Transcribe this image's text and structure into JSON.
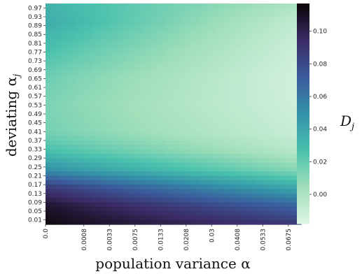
{
  "chart_data": {
    "type": "heatmap",
    "xlabel": "population variance α",
    "ylabel": "deviating α",
    "ylabel_sub": "j",
    "x_tick_labels": [
      "0.0",
      "0.0008",
      "0.0033",
      "0.0075",
      "0.0133",
      "0.0208",
      "0.03",
      "0.0408",
      "0.0533",
      "0.0675"
    ],
    "y_tick_labels": [
      "0.97",
      "0.93",
      "0.89",
      "0.85",
      "0.81",
      "0.77",
      "0.73",
      "0.69",
      "0.65",
      "0.61",
      "0.57",
      "0.53",
      "0.49",
      "0.45",
      "0.41",
      "0.37",
      "0.33",
      "0.29",
      "0.25",
      "0.21",
      "0.17",
      "0.13",
      "0.09",
      "0.05",
      "0.01"
    ],
    "colorbar": {
      "label": "D",
      "label_sub": "j",
      "ticks": [
        "0.10",
        "0.08",
        "0.06",
        "0.04",
        "0.02",
        "0.00"
      ],
      "tick_values": [
        0.1,
        0.08,
        0.06,
        0.04,
        0.02,
        0.0
      ],
      "range": [
        -0.018,
        0.117
      ],
      "colormap": "mako_r",
      "stops": [
        "#def5e5",
        "#a0dfb9",
        "#49c1ad",
        "#3492a8",
        "#3b5b9c",
        "#3b2b65",
        "#0b0405"
      ]
    },
    "value_profile_rows": {
      "description_free_note": "",
      "alpha_j_at_x0": [
        0.97,
        0.89,
        0.77,
        0.65,
        0.53,
        0.41,
        0.33,
        0.25,
        0.17,
        0.09,
        0.01
      ],
      "D_at_x0": [
        0.034,
        0.038,
        0.028,
        0.018,
        0.014,
        0.016,
        0.028,
        0.05,
        0.088,
        0.108,
        0.115
      ],
      "D_at_xmax": [
        0.0,
        -0.008,
        -0.012,
        -0.014,
        -0.013,
        -0.01,
        -0.004,
        0.01,
        0.038,
        0.068,
        0.088
      ]
    }
  }
}
